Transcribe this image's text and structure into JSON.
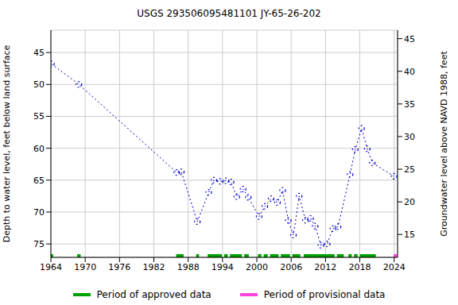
{
  "chart_data": {
    "type": "scatter",
    "title": "USGS 293506095481101 JY-65-26-202",
    "y_label": "Depth to water level, feet below land surface",
    "y2_label": "Groundwater level above NAVD 1988, feet",
    "x": [
      1964.1,
      1968.9,
      1986.0,
      1986.8,
      1989.6,
      1991.6,
      1992.5,
      1993.6,
      1994.6,
      1995.5,
      1996.5,
      1997.6,
      1998.5,
      2000.4,
      2001.4,
      2002.5,
      2003.6,
      2004.5,
      2005.5,
      2006.4,
      2007.4,
      2008.5,
      2009.4,
      2010.2,
      2011.2,
      2012.3,
      2013.3,
      2014.2,
      2016.3,
      2017.2,
      2018.3,
      2019.3,
      2020.2,
      2024.0
    ],
    "values": [
      46.8,
      50.0,
      63.8,
      63.7,
      71.5,
      66.9,
      65.0,
      65.2,
      65.1,
      65.3,
      67.6,
      66.4,
      67.7,
      70.7,
      69.1,
      67.9,
      68.5,
      66.6,
      71.3,
      73.6,
      67.5,
      71.3,
      71.0,
      72.2,
      75.2,
      75.0,
      72.6,
      72.3,
      64.1,
      60.2,
      56.9,
      60.1,
      62.3,
      64.4
    ],
    "color": "#0000cc",
    "marker": "circle",
    "line_style": "dotted",
    "xlim": [
      1964,
      2024.6
    ],
    "xticks": [
      1964,
      1970,
      1976,
      1982,
      1988,
      1994,
      2000,
      2006,
      2012,
      2018,
      2024
    ],
    "ylim": [
      41.5,
      77.1
    ],
    "yticks": [
      45,
      50,
      55,
      60,
      65,
      70,
      75
    ],
    "y2lim": [
      11.5,
      46.3
    ],
    "y2ticks": [
      15,
      20,
      25,
      30,
      35,
      40,
      45
    ],
    "grid": true,
    "periods": [
      {
        "name": "Period of approved data",
        "color": "#00a000",
        "ranges": [
          [
            1964.0,
            1964.4
          ],
          [
            1968.6,
            1969.2
          ],
          [
            1985.9,
            1987.2
          ],
          [
            1989.4,
            1989.9
          ],
          [
            1991.4,
            1993.9
          ],
          [
            1994.3,
            1994.9
          ],
          [
            1995.3,
            1997.4
          ],
          [
            1997.8,
            1998.6
          ],
          [
            2000.2,
            2000.8
          ],
          [
            2001.2,
            2001.9
          ],
          [
            2002.3,
            2003.8
          ],
          [
            2004.2,
            2005.8
          ],
          [
            2006.2,
            2007.6
          ],
          [
            2008.2,
            2013.6
          ],
          [
            2014.0,
            2015.2
          ],
          [
            2016.0,
            2016.6
          ],
          [
            2017.0,
            2017.6
          ],
          [
            2018.0,
            2020.8
          ]
        ]
      },
      {
        "name": "Period of provisional data",
        "color": "#ff44dd",
        "ranges": [
          [
            2023.9,
            2024.5
          ]
        ]
      }
    ]
  }
}
